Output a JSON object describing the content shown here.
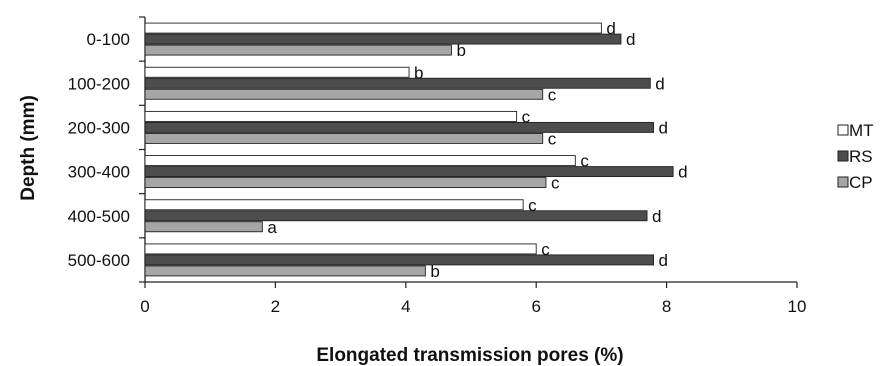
{
  "chart_data": {
    "type": "bar",
    "orientation": "horizontal",
    "title": "",
    "xlabel": "Elongated transmission pores (%)",
    "ylabel": "Depth (mm)",
    "xlim": [
      0,
      10
    ],
    "x_ticks": [
      "0",
      "2",
      "4",
      "6",
      "8",
      "10"
    ],
    "categories": [
      "0-100",
      "100-200",
      "200-300",
      "300-400",
      "400-500",
      "500-600"
    ],
    "series": [
      {
        "name": "MT",
        "color": "#ffffff",
        "values": [
          7.0,
          4.05,
          5.7,
          6.6,
          5.8,
          6.0
        ],
        "labels": [
          "d",
          "b",
          "c",
          "c",
          "c",
          "c"
        ]
      },
      {
        "name": "RS",
        "color": "#4d4d4d",
        "values": [
          7.3,
          7.75,
          7.8,
          8.1,
          7.7,
          7.8
        ],
        "labels": [
          "d",
          "d",
          "d",
          "d",
          "d",
          "d"
        ]
      },
      {
        "name": "CP",
        "color": "#a6a6a6",
        "values": [
          4.7,
          6.1,
          6.1,
          6.15,
          1.8,
          4.3
        ],
        "labels": [
          "b",
          "c",
          "c",
          "c",
          "a",
          "b"
        ]
      }
    ],
    "grid": false,
    "legend_position": "right"
  }
}
